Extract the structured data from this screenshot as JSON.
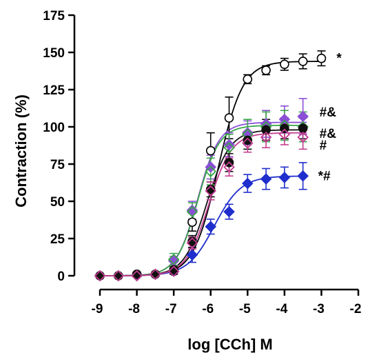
{
  "chart_data": {
    "type": "scatter",
    "title": "",
    "xlabel": "log [CCh] M",
    "ylabel": "Contraction (%)",
    "xlim": [
      -9,
      -2
    ],
    "ylim": [
      0,
      175
    ],
    "xticks": [
      -9,
      -8,
      -7,
      -6,
      -5,
      -4,
      -3,
      -2
    ],
    "yticks": [
      0,
      25,
      50,
      75,
      100,
      125,
      150,
      175
    ],
    "grid": false,
    "legend": "none",
    "x": [
      -9,
      -8.5,
      -8,
      -7.5,
      -7,
      -6.5,
      -6,
      -5.5,
      -5,
      -4.5,
      -4,
      -3.5,
      -3
    ],
    "series": [
      {
        "marker": "open-circle",
        "color": "#000000",
        "fill": "none",
        "values": [
          0,
          0,
          1,
          1,
          3,
          36,
          84,
          106,
          132,
          138,
          142,
          144,
          146
        ],
        "errors": [
          1,
          1,
          1,
          1,
          2,
          6,
          12,
          14,
          3,
          3,
          4,
          5,
          5
        ],
        "annotation": "*",
        "fit": {
          "bottom": 0,
          "top": 144,
          "logec50": -5.8,
          "hill": 1.3
        }
      },
      {
        "marker": "filled-diamond",
        "color": "#1f2ecc",
        "fill": "#1f2ecc",
        "values": [
          0,
          0,
          0,
          1,
          3,
          14,
          33,
          43,
          62,
          65,
          66,
          67
        ],
        "errors": [
          1,
          1,
          1,
          1,
          2,
          5,
          5,
          5,
          6,
          7,
          7,
          9
        ],
        "annotation": "*#",
        "fit": {
          "bottom": 0,
          "top": 67,
          "logec50": -5.9,
          "hill": 1.2
        }
      },
      {
        "marker": "filled-diamond",
        "color": "#8a4fd6",
        "fill": "#8a4fd6",
        "values": [
          0,
          0,
          0,
          1,
          10,
          44,
          73,
          88,
          96,
          102,
          105,
          107
        ],
        "errors": [
          1,
          1,
          1,
          1,
          3,
          6,
          8,
          8,
          8,
          9,
          9,
          12
        ],
        "annotation": "#&",
        "fit": {
          "bottom": 0,
          "top": 103,
          "logec50": -6.35,
          "hill": 1.5
        }
      },
      {
        "marker": "open-diamond",
        "color": "#38a548",
        "fill": "none",
        "values": [
          0,
          0,
          0,
          1,
          11,
          43,
          70,
          86,
          95,
          100,
          101,
          100
        ],
        "errors": [
          1,
          1,
          1,
          1,
          4,
          6,
          9,
          9,
          10,
          10,
          10,
          10
        ],
        "annotation": "",
        "fit": {
          "bottom": 0,
          "top": 101,
          "logec50": -6.35,
          "hill": 1.5
        }
      },
      {
        "marker": "filled-circle",
        "color": "#111111",
        "fill": "#111111",
        "values": [
          0,
          0,
          1,
          1,
          4,
          23,
          58,
          76,
          91,
          98,
          99,
          99
        ],
        "errors": [
          1,
          1,
          1,
          1,
          2,
          4,
          5,
          6,
          6,
          7,
          7,
          7
        ],
        "annotation": "#&",
        "fit": {
          "bottom": 0,
          "top": 98,
          "logec50": -6.1,
          "hill": 1.4
        }
      },
      {
        "marker": "open-diamond",
        "color": "#c43c8f",
        "fill": "none",
        "values": [
          0,
          0,
          0,
          1,
          3,
          22,
          57,
          73,
          89,
          93,
          95,
          93
        ],
        "errors": [
          1,
          1,
          1,
          1,
          2,
          4,
          6,
          6,
          6,
          7,
          7,
          8
        ],
        "annotation": "#",
        "fit": {
          "bottom": 0,
          "top": 96,
          "logec50": -6.05,
          "hill": 1.4
        }
      }
    ]
  }
}
